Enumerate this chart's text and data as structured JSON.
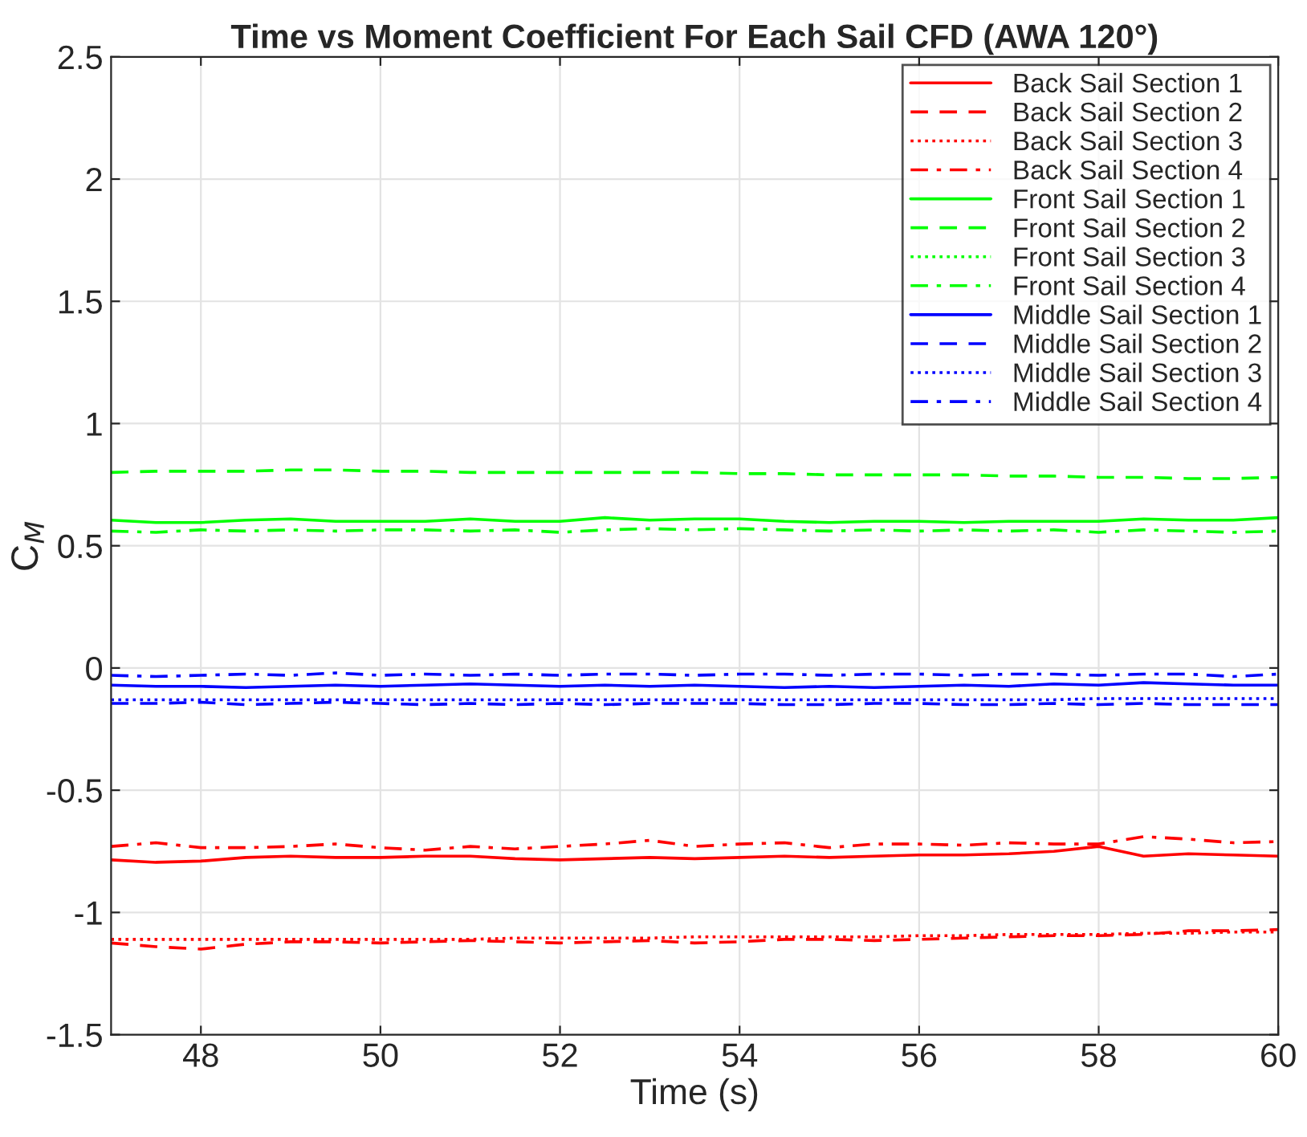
{
  "chart_data": {
    "type": "line",
    "title": "Time vs Moment Coefficient For Each Sail CFD (AWA 120°)",
    "xlabel": "Time (s)",
    "ylabel": "C$_{M}$",
    "x": [
      47,
      47.5,
      48,
      48.5,
      49,
      49.5,
      50,
      50.5,
      51,
      51.5,
      52,
      52.5,
      53,
      53.5,
      54,
      54.5,
      55,
      55.5,
      56,
      56.5,
      57,
      57.5,
      58,
      58.5,
      59,
      59.5,
      60
    ],
    "series": [
      {
        "name": "Back Sail Section 1",
        "color": "#ff0000",
        "line_style": "solid",
        "values": [
          -0.785,
          -0.795,
          -0.79,
          -0.775,
          -0.77,
          -0.775,
          -0.775,
          -0.77,
          -0.77,
          -0.78,
          -0.785,
          -0.78,
          -0.775,
          -0.78,
          -0.775,
          -0.77,
          -0.775,
          -0.77,
          -0.765,
          -0.765,
          -0.76,
          -0.75,
          -0.73,
          -0.77,
          -0.76,
          -0.765,
          -0.77
        ]
      },
      {
        "name": "Back Sail Section 2",
        "color": "#ff0000",
        "line_style": "dashed",
        "values": [
          -1.125,
          -1.14,
          -1.15,
          -1.13,
          -1.12,
          -1.12,
          -1.125,
          -1.12,
          -1.115,
          -1.12,
          -1.125,
          -1.12,
          -1.115,
          -1.125,
          -1.12,
          -1.11,
          -1.11,
          -1.115,
          -1.11,
          -1.105,
          -1.1,
          -1.095,
          -1.095,
          -1.09,
          -1.075,
          -1.075,
          -1.07
        ]
      },
      {
        "name": "Back Sail Section 3",
        "color": "#ff0000",
        "line_style": "dotted",
        "values": [
          -1.11,
          -1.11,
          -1.11,
          -1.11,
          -1.11,
          -1.11,
          -1.11,
          -1.11,
          -1.11,
          -1.105,
          -1.105,
          -1.105,
          -1.105,
          -1.1,
          -1.1,
          -1.1,
          -1.1,
          -1.1,
          -1.095,
          -1.095,
          -1.09,
          -1.09,
          -1.09,
          -1.085,
          -1.085,
          -1.08,
          -1.08
        ]
      },
      {
        "name": "Back Sail Section 4",
        "color": "#ff0000",
        "line_style": "dashdot",
        "values": [
          -0.73,
          -0.715,
          -0.735,
          -0.735,
          -0.73,
          -0.72,
          -0.735,
          -0.745,
          -0.73,
          -0.74,
          -0.73,
          -0.72,
          -0.705,
          -0.73,
          -0.72,
          -0.715,
          -0.735,
          -0.72,
          -0.72,
          -0.725,
          -0.715,
          -0.72,
          -0.72,
          -0.69,
          -0.7,
          -0.715,
          -0.71
        ]
      },
      {
        "name": "Front Sail Section 1",
        "color": "#00ff00",
        "line_style": "solid",
        "values": [
          0.605,
          0.595,
          0.595,
          0.605,
          0.61,
          0.6,
          0.6,
          0.6,
          0.61,
          0.6,
          0.6,
          0.615,
          0.605,
          0.61,
          0.61,
          0.6,
          0.595,
          0.6,
          0.6,
          0.595,
          0.6,
          0.6,
          0.6,
          0.61,
          0.605,
          0.605,
          0.615
        ]
      },
      {
        "name": "Front Sail Section 2",
        "color": "#00ff00",
        "line_style": "dashed",
        "values": [
          0.8,
          0.805,
          0.805,
          0.805,
          0.81,
          0.81,
          0.805,
          0.805,
          0.8,
          0.8,
          0.8,
          0.8,
          0.8,
          0.8,
          0.795,
          0.795,
          0.79,
          0.79,
          0.79,
          0.79,
          0.785,
          0.785,
          0.78,
          0.78,
          0.775,
          0.775,
          0.78
        ]
      },
      {
        "name": "Front Sail Section 3",
        "color": "#00ff00",
        "line_style": "dotted",
        "values": [
          null,
          null,
          null,
          null,
          null,
          null,
          null,
          null,
          null,
          null,
          null,
          null,
          null,
          null,
          null,
          null,
          null,
          null,
          null,
          null,
          null,
          null,
          null,
          null,
          null,
          null,
          null
        ]
      },
      {
        "name": "Front Sail Section 4",
        "color": "#00ff00",
        "line_style": "dashdot",
        "values": [
          0.56,
          0.555,
          0.565,
          0.56,
          0.565,
          0.56,
          0.565,
          0.565,
          0.56,
          0.565,
          0.555,
          0.565,
          0.57,
          0.565,
          0.57,
          0.565,
          0.56,
          0.565,
          0.56,
          0.565,
          0.56,
          0.565,
          0.555,
          0.565,
          0.56,
          0.555,
          0.56
        ]
      },
      {
        "name": "Middle Sail Section 1",
        "color": "#0000ff",
        "line_style": "solid",
        "values": [
          -0.07,
          -0.075,
          -0.075,
          -0.08,
          -0.075,
          -0.07,
          -0.075,
          -0.07,
          -0.065,
          -0.07,
          -0.075,
          -0.07,
          -0.075,
          -0.07,
          -0.075,
          -0.08,
          -0.075,
          -0.08,
          -0.075,
          -0.07,
          -0.075,
          -0.065,
          -0.07,
          -0.06,
          -0.065,
          -0.07,
          -0.07
        ]
      },
      {
        "name": "Middle Sail Section 2",
        "color": "#0000ff",
        "line_style": "dashed",
        "values": [
          -0.145,
          -0.145,
          -0.14,
          -0.15,
          -0.145,
          -0.14,
          -0.145,
          -0.15,
          -0.145,
          -0.15,
          -0.145,
          -0.15,
          -0.145,
          -0.145,
          -0.145,
          -0.15,
          -0.15,
          -0.145,
          -0.145,
          -0.15,
          -0.15,
          -0.145,
          -0.15,
          -0.145,
          -0.15,
          -0.15,
          -0.15
        ]
      },
      {
        "name": "Middle Sail Section 3",
        "color": "#0000ff",
        "line_style": "dotted",
        "values": [
          -0.13,
          -0.13,
          -0.13,
          -0.13,
          -0.13,
          -0.13,
          -0.13,
          -0.13,
          -0.13,
          -0.13,
          -0.13,
          -0.13,
          -0.13,
          -0.13,
          -0.13,
          -0.13,
          -0.13,
          -0.13,
          -0.13,
          -0.13,
          -0.13,
          -0.13,
          -0.125,
          -0.125,
          -0.125,
          -0.125,
          -0.125
        ]
      },
      {
        "name": "Middle Sail Section 4",
        "color": "#0000ff",
        "line_style": "dashdot",
        "values": [
          -0.03,
          -0.035,
          -0.03,
          -0.025,
          -0.03,
          -0.02,
          -0.03,
          -0.025,
          -0.03,
          -0.025,
          -0.03,
          -0.025,
          -0.025,
          -0.03,
          -0.025,
          -0.025,
          -0.03,
          -0.025,
          -0.025,
          -0.03,
          -0.025,
          -0.025,
          -0.03,
          -0.025,
          -0.025,
          -0.035,
          -0.025
        ]
      }
    ],
    "xlim": [
      47,
      60
    ],
    "ylim": [
      -1.5,
      2.5
    ],
    "xticks": [
      48,
      50,
      52,
      54,
      56,
      58,
      60
    ],
    "yticks": [
      -1.5,
      -1,
      -0.5,
      0,
      0.5,
      1,
      1.5,
      2,
      2.5
    ],
    "grid": true,
    "legend": "top right"
  }
}
